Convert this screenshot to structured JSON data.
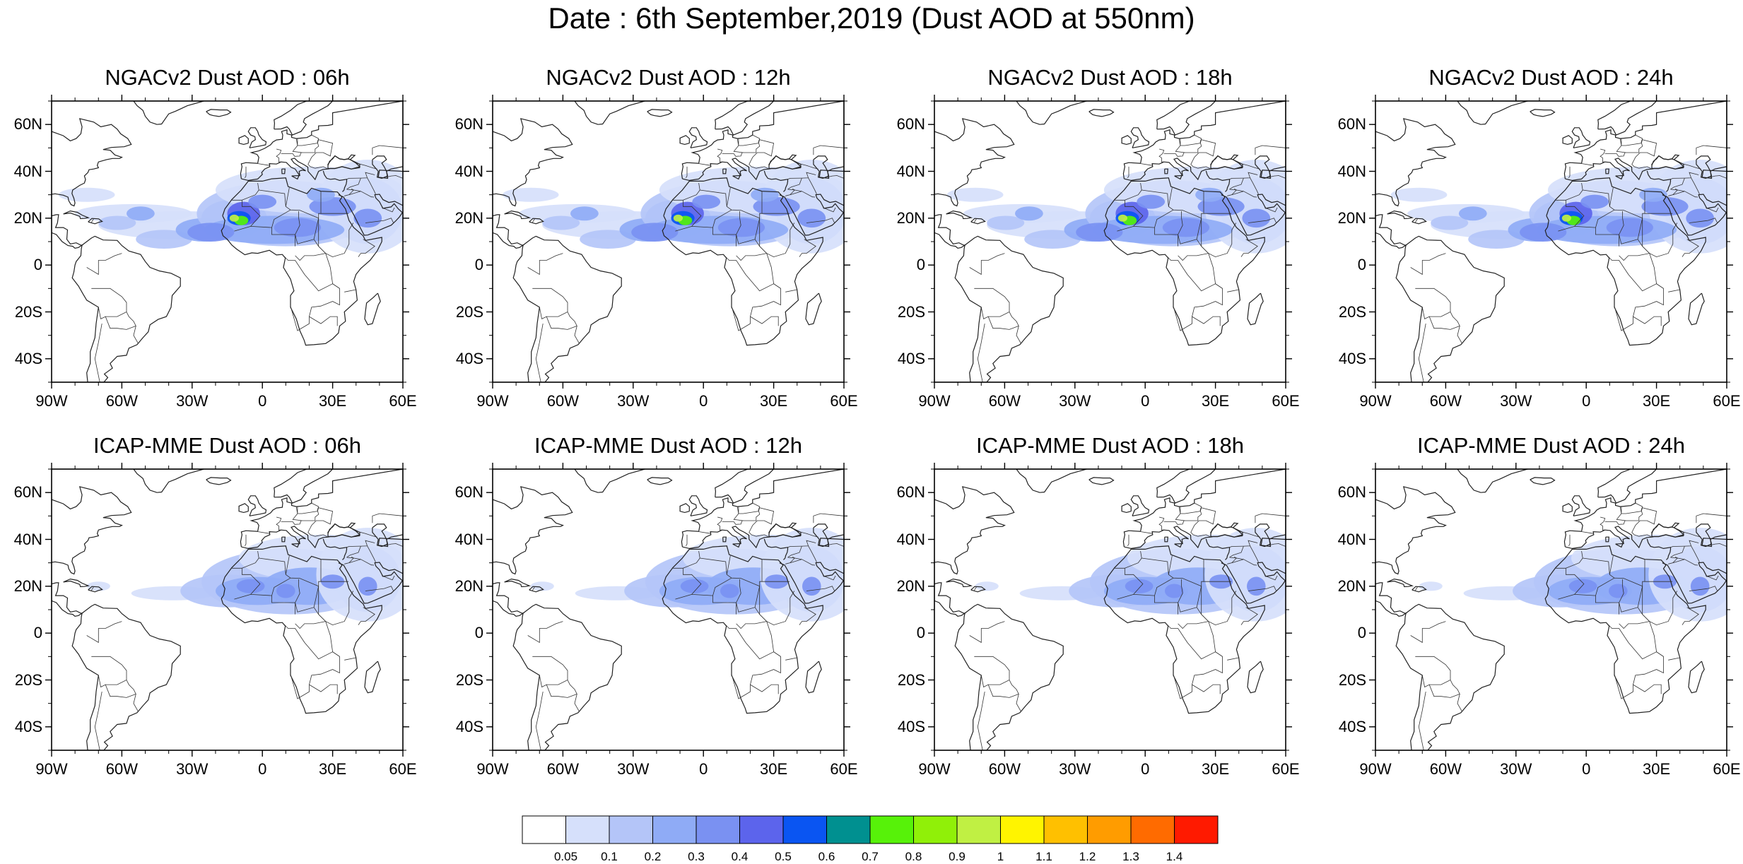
{
  "main_title": "Date : 6th September,2019 (Dust AOD at 550nm)",
  "axes": {
    "lat_ticks": [
      {
        "value": 60,
        "label": "60N"
      },
      {
        "value": 40,
        "label": "40N"
      },
      {
        "value": 20,
        "label": "20N"
      },
      {
        "value": 0,
        "label": "0"
      },
      {
        "value": -20,
        "label": "20S"
      },
      {
        "value": -40,
        "label": "40S"
      }
    ],
    "lon_ticks": [
      {
        "value": -90,
        "label": "90W"
      },
      {
        "value": -60,
        "label": "60W"
      },
      {
        "value": -30,
        "label": "30W"
      },
      {
        "value": 0,
        "label": "0"
      },
      {
        "value": 30,
        "label": "30E"
      },
      {
        "value": 60,
        "label": "60E"
      }
    ],
    "lon_range": [
      -90,
      60
    ],
    "lat_range": [
      -50,
      70
    ]
  },
  "panels": [
    {
      "title": "NGACv2 Dust AOD : 06h",
      "model": "NGACv2",
      "lead": "06h"
    },
    {
      "title": "NGACv2 Dust AOD : 12h",
      "model": "NGACv2",
      "lead": "12h"
    },
    {
      "title": "NGACv2 Dust AOD : 18h",
      "model": "NGACv2",
      "lead": "18h"
    },
    {
      "title": "NGACv2 Dust AOD : 24h",
      "model": "NGACv2",
      "lead": "24h"
    },
    {
      "title": "ICAP-MME Dust AOD : 06h",
      "model": "ICAP-MME",
      "lead": "06h"
    },
    {
      "title": "ICAP-MME Dust AOD : 12h",
      "model": "ICAP-MME",
      "lead": "12h"
    },
    {
      "title": "ICAP-MME Dust AOD : 18h",
      "model": "ICAP-MME",
      "lead": "18h"
    },
    {
      "title": "ICAP-MME Dust AOD : 24h",
      "model": "ICAP-MME",
      "lead": "24h"
    }
  ],
  "colorbar": {
    "colors": [
      "#ffffff",
      "#d6e0fb",
      "#b4c5f8",
      "#8fabf6",
      "#7a91f2",
      "#5c64ec",
      "#0a55f2",
      "#009090",
      "#57f209",
      "#90f008",
      "#c0f043",
      "#fff400",
      "#ffc000",
      "#ff9c00",
      "#ff6b00",
      "#ff1a00"
    ],
    "labels": [
      "0.05",
      "0.1",
      "0.2",
      "0.3",
      "0.4",
      "0.5",
      "0.6",
      "0.7",
      "0.8",
      "0.9",
      "1",
      "1.1",
      "1.2",
      "1.3",
      "1.4"
    ]
  }
}
